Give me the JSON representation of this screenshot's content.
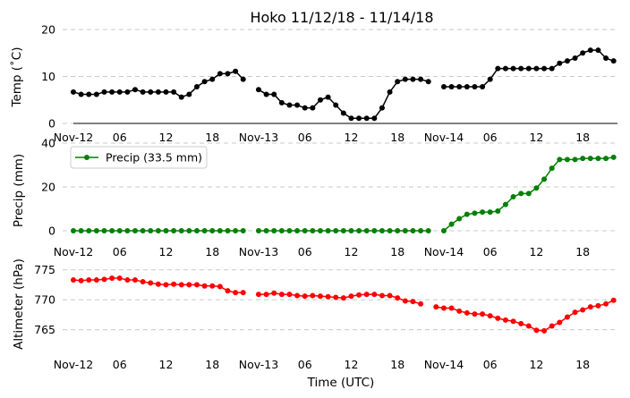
{
  "chart_data": {
    "title": "Hoko 11/12/18 - 11/14/18",
    "xlabel": "Time (UTC)",
    "type": "line",
    "x_tick_labels": [
      "Nov-12",
      "06",
      "12",
      "18",
      "Nov-13",
      "06",
      "12",
      "18",
      "Nov-14",
      "06",
      "12",
      "18"
    ],
    "x_tick_hours": [
      0,
      6,
      12,
      18,
      24,
      30,
      36,
      42,
      48,
      54,
      60,
      66
    ],
    "x_range_hours": [
      0,
      70.5
    ],
    "panels": [
      {
        "id": "temp",
        "type": "line",
        "ylabel": "Temp ($^\\circ$C)",
        "ylabel_display": "Temp (˚C)",
        "ylim": [
          0,
          20
        ],
        "yticks": [
          "0",
          "10",
          "20"
        ],
        "ytick_values": [
          0,
          10,
          20
        ],
        "grid": "horizontal dashed",
        "color": "#000000",
        "series": [
          {
            "x": [
              0,
              1,
              2,
              3,
              4,
              5,
              6,
              7,
              8,
              9,
              10,
              11,
              12,
              13,
              14,
              15,
              16,
              17,
              18,
              19,
              20,
              21,
              22,
              23,
              24,
              25,
              26,
              27,
              28,
              29,
              30,
              31,
              32,
              33,
              34,
              35,
              36,
              37,
              38,
              39,
              40,
              41,
              42,
              43,
              44,
              45,
              46,
              47,
              48,
              49,
              50,
              51,
              52,
              53,
              54,
              55,
              56,
              57,
              58,
              59,
              60,
              61,
              62,
              63,
              64,
              65,
              66,
              67,
              68,
              69,
              70
            ],
            "values": [
              6.7,
              6.2,
              6.2,
              6.2,
              6.7,
              6.7,
              6.7,
              6.7,
              7.2,
              6.7,
              6.7,
              6.7,
              6.7,
              6.7,
              5.6,
              6.2,
              7.8,
              8.9,
              9.4,
              10.6,
              10.6,
              11.1,
              9.4,
              null,
              7.2,
              6.2,
              6.2,
              4.4,
              3.9,
              3.9,
              3.3,
              3.3,
              5.0,
              5.6,
              3.9,
              2.2,
              1.1,
              1.1,
              1.1,
              1.1,
              3.3,
              6.7,
              8.9,
              9.4,
              9.4,
              9.4,
              8.9,
              null,
              7.8,
              7.8,
              7.8,
              7.8,
              7.8,
              7.8,
              9.4,
              11.7,
              11.7,
              11.7,
              11.7,
              11.7,
              11.7,
              11.7,
              11.7,
              12.8,
              13.3,
              13.9,
              15.0,
              15.6,
              15.6,
              13.9,
              13.3
            ]
          }
        ]
      },
      {
        "id": "precip",
        "type": "line",
        "ylabel": "Precip (mm)",
        "ylim": [
          0,
          40
        ],
        "yticks": [
          "0",
          "20",
          "40"
        ],
        "ytick_values": [
          0,
          20,
          40
        ],
        "grid": "horizontal dashed",
        "color": "#008000",
        "legend_position": "upper-left",
        "series": [
          {
            "name": "Precip (33.5 mm)",
            "x": [
              0,
              1,
              2,
              3,
              4,
              5,
              6,
              7,
              8,
              9,
              10,
              11,
              12,
              13,
              14,
              15,
              16,
              17,
              18,
              19,
              20,
              21,
              22,
              23,
              24,
              25,
              26,
              27,
              28,
              29,
              30,
              31,
              32,
              33,
              34,
              35,
              36,
              37,
              38,
              39,
              40,
              41,
              42,
              43,
              44,
              45,
              46,
              47,
              48,
              49,
              50,
              51,
              52,
              53,
              54,
              55,
              56,
              57,
              58,
              59,
              60,
              61,
              62,
              63,
              64,
              65,
              66,
              67,
              68,
              69,
              70
            ],
            "values": [
              0,
              0,
              0,
              0,
              0,
              0,
              0,
              0,
              0,
              0,
              0,
              0,
              0,
              0,
              0,
              0,
              0,
              0,
              0,
              0,
              0,
              0,
              0,
              null,
              0,
              0,
              0,
              0,
              0,
              0,
              0,
              0,
              0,
              0,
              0,
              0,
              0,
              0,
              0,
              0,
              0,
              0,
              0,
              0,
              0,
              0,
              0,
              null,
              0,
              3,
              5.5,
              7.5,
              8,
              8.5,
              8.5,
              9,
              12,
              15.5,
              17,
              17,
              19.5,
              23.5,
              28.5,
              32.5,
              32.5,
              32.5,
              33,
              33,
              33,
              33,
              33.5
            ]
          }
        ]
      },
      {
        "id": "altimeter",
        "type": "line",
        "ylabel": "Altimeter (hPa)",
        "ylim": [
          760.3,
          776.0
        ],
        "yticks": [
          "765",
          "770",
          "775"
        ],
        "ytick_values": [
          765,
          770,
          775
        ],
        "grid": "horizontal dashed",
        "color": "#ff0000",
        "series": [
          {
            "x": [
              0,
              1,
              2,
              3,
              4,
              5,
              6,
              7,
              8,
              9,
              10,
              11,
              12,
              13,
              14,
              15,
              16,
              17,
              18,
              19,
              20,
              21,
              22,
              23,
              24,
              25,
              26,
              27,
              28,
              29,
              30,
              31,
              32,
              33,
              34,
              35,
              36,
              37,
              38,
              39,
              40,
              41,
              42,
              43,
              44,
              45,
              46,
              47,
              48,
              49,
              50,
              51,
              52,
              53,
              54,
              55,
              56,
              57,
              58,
              59,
              60,
              61,
              62,
              63,
              64,
              65,
              66,
              67,
              68,
              69,
              70
            ],
            "values": [
              773.3,
              773.2,
              773.3,
              773.3,
              773.4,
              773.6,
              773.6,
              773.3,
              773.3,
              773.0,
              772.8,
              772.6,
              772.5,
              772.6,
              772.5,
              772.5,
              772.5,
              772.3,
              772.3,
              772.2,
              771.5,
              771.2,
              771.2,
              null,
              770.9,
              770.9,
              771.1,
              770.9,
              770.9,
              770.7,
              770.6,
              770.7,
              770.6,
              770.5,
              770.4,
              770.3,
              770.6,
              770.8,
              770.9,
              770.9,
              770.7,
              770.7,
              770.3,
              769.8,
              769.7,
              769.3,
              null,
              768.8,
              768.6,
              768.6,
              768.1,
              767.8,
              767.6,
              767.6,
              767.3,
              766.9,
              766.6,
              766.4,
              766.0,
              765.6,
              764.9,
              764.8,
              765.6,
              766.2,
              767.1,
              767.9,
              768.3,
              768.8,
              769.0,
              769.3,
              769.9
            ]
          }
        ]
      }
    ]
  }
}
